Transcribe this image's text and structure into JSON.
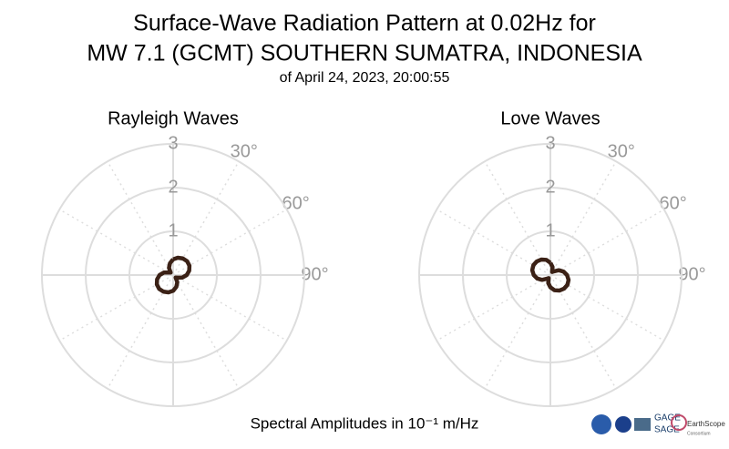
{
  "title": "Surface-Wave Radiation Pattern at 0.02Hz for",
  "title2": "MW 7.1 (GCMT) SOUTHERN SUMATRA, INDONESIA",
  "subtitle": "of April 24, 2023, 20:00:55",
  "footer": "Spectral Amplitudes in 10⁻¹ m/Hz",
  "logos": [
    "GAGE",
    "SAGE",
    "EarthScope",
    "Consortium"
  ],
  "chart_data": [
    {
      "type": "polar",
      "title": "Rayleigh Waves",
      "color": "#3b2116",
      "theta": [
        0,
        15,
        30,
        45,
        60,
        75,
        90,
        105,
        120,
        135,
        150,
        165,
        180,
        195,
        210,
        225,
        240,
        255,
        270,
        285,
        300,
        315,
        330,
        345,
        360
      ],
      "values": [
        0.36,
        0.41,
        0.44,
        0.45,
        0.43,
        0.38,
        0.31,
        0.22,
        0.12,
        0.08,
        0.19,
        0.28,
        0.36,
        0.41,
        0.44,
        0.45,
        0.43,
        0.38,
        0.31,
        0.22,
        0.12,
        0.08,
        0.19,
        0.28,
        0.36
      ],
      "rlim": [
        0,
        3
      ],
      "rticks": [
        1,
        2,
        3
      ],
      "thetaticks": [
        {
          "value": 30,
          "label": "30°"
        },
        {
          "value": 60,
          "label": "60°"
        },
        {
          "value": 90,
          "label": "90°"
        }
      ]
    },
    {
      "type": "polar",
      "title": "Love Waves",
      "color": "#3b2116",
      "theta": [
        0,
        15,
        30,
        45,
        60,
        75,
        90,
        105,
        120,
        135,
        150,
        165,
        180,
        195,
        210,
        225,
        240,
        255,
        270,
        285,
        300,
        315,
        330,
        345,
        360
      ],
      "values": [
        0.28,
        0.19,
        0.08,
        0.12,
        0.22,
        0.31,
        0.38,
        0.43,
        0.45,
        0.44,
        0.41,
        0.36,
        0.28,
        0.19,
        0.08,
        0.12,
        0.22,
        0.31,
        0.38,
        0.43,
        0.45,
        0.44,
        0.41,
        0.36,
        0.28
      ],
      "rlim": [
        0,
        3
      ],
      "rticks": [
        1,
        2,
        3
      ],
      "thetaticks": [
        {
          "value": 30,
          "label": "30°"
        },
        {
          "value": 60,
          "label": "60°"
        },
        {
          "value": 90,
          "label": "90°"
        }
      ]
    }
  ]
}
